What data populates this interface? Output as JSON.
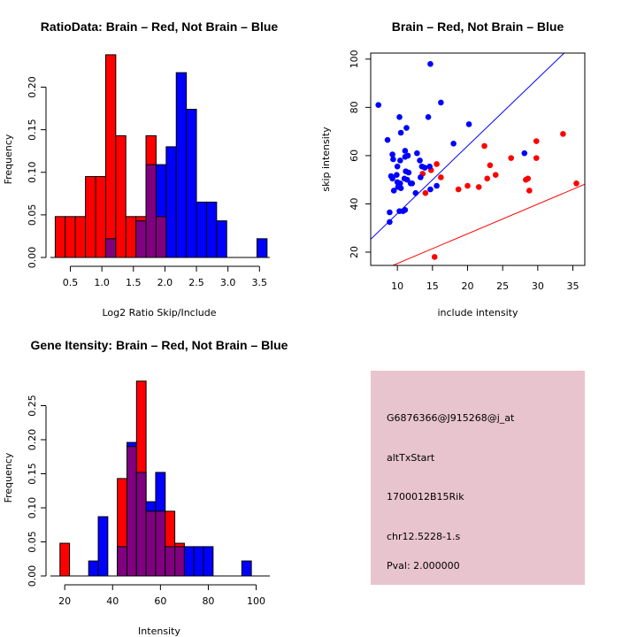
{
  "chart_data": [
    {
      "id": "ratio",
      "type": "bar",
      "subtype": "overlaid-histogram",
      "title": "RatioData: Brain – Red, Not Brain – Blue",
      "xlabel": "Log2 Ratio Skip/Include",
      "ylabel": "Frequency",
      "xlim": [
        0.24,
        3.58
      ],
      "ylim": [
        0,
        0.24
      ],
      "xticks": [
        0.5,
        1.0,
        1.5,
        2.0,
        2.5,
        3.0,
        3.5
      ],
      "xtick_labels": [
        "0.5",
        "1.0",
        "1.5",
        "2.0",
        "2.5",
        "3.0",
        "3.5"
      ],
      "yticks": [
        0.0,
        0.05,
        0.1,
        0.15,
        0.2
      ],
      "ytick_labels": [
        "0.00",
        "0.05",
        "0.10",
        "0.15",
        "0.20"
      ],
      "bin_start": 0.26,
      "bin_width": 0.16,
      "series": [
        {
          "name": "Brain",
          "color": "#ff0000",
          "values": [
            0.048,
            0.048,
            0.048,
            0.095,
            0.095,
            0.238,
            0.143,
            0.048,
            0.048,
            0.143,
            0.048,
            0,
            0,
            0,
            0,
            0,
            0,
            0,
            0,
            0,
            0
          ]
        },
        {
          "name": "Not Brain",
          "color": "#0000ff",
          "values": [
            0,
            0,
            0,
            0,
            0,
            0.022,
            0,
            0,
            0.043,
            0.109,
            0.109,
            0.13,
            0.217,
            0.174,
            0.065,
            0.065,
            0.043,
            0,
            0,
            0,
            0.022
          ]
        }
      ],
      "overlap_color": "#800080"
    },
    {
      "id": "scatter",
      "type": "scatter",
      "title": "Brain – Red, Not Brain – Blue",
      "xlabel": "include intensity",
      "ylabel": "skip intensity",
      "xlim": [
        6.2,
        36.7
      ],
      "ylim": [
        14.5,
        102.5
      ],
      "xticks": [
        10,
        15,
        20,
        25,
        30,
        35
      ],
      "yticks": [
        20,
        40,
        60,
        80,
        100
      ],
      "series": [
        {
          "name": "Brain",
          "color": "#ff0000",
          "points": [
            [
              15.3,
              18.0
            ],
            [
              13.6,
              52.5
            ],
            [
              14.8,
              54.0
            ],
            [
              15.6,
              56.5
            ],
            [
              16.2,
              51.0
            ],
            [
              14.0,
              44.5
            ],
            [
              18.7,
              46.0
            ],
            [
              20.0,
              47.5
            ],
            [
              21.6,
              47.0
            ],
            [
              22.8,
              50.5
            ],
            [
              23.2,
              56.0
            ],
            [
              22.4,
              64.0
            ],
            [
              24.0,
              52.0
            ],
            [
              26.2,
              59.0
            ],
            [
              28.3,
              50.0
            ],
            [
              28.6,
              50.5
            ],
            [
              28.8,
              45.5
            ],
            [
              29.8,
              66.0
            ],
            [
              29.8,
              59.0
            ],
            [
              33.6,
              69.0
            ],
            [
              35.5,
              48.5
            ]
          ],
          "fit_line": {
            "slope": 1.23,
            "intercept": 3.0
          }
        },
        {
          "name": "Not Brain",
          "color": "#0000ff",
          "points": [
            [
              7.3,
              81.0
            ],
            [
              14.7,
              98.0
            ],
            [
              16.2,
              82.0
            ],
            [
              14.4,
              76.0
            ],
            [
              10.3,
              76.0
            ],
            [
              11.3,
              71.5
            ],
            [
              10.5,
              69.5
            ],
            [
              8.6,
              66.5
            ],
            [
              9.3,
              60.5
            ],
            [
              9.4,
              58.5
            ],
            [
              10.4,
              58.0
            ],
            [
              11.1,
              62.0
            ],
            [
              11.1,
              59.5
            ],
            [
              11.5,
              60.0
            ],
            [
              12.8,
              61.0
            ],
            [
              13.2,
              58.0
            ],
            [
              18.0,
              65.0
            ],
            [
              20.2,
              73.0
            ],
            [
              9.1,
              51.5
            ],
            [
              9.3,
              50.5
            ],
            [
              9.5,
              45.5
            ],
            [
              10.0,
              55.5
            ],
            [
              9.9,
              52.0
            ],
            [
              10.0,
              49.0
            ],
            [
              10.4,
              48.5
            ],
            [
              10.1,
              47.0
            ],
            [
              10.5,
              46.5
            ],
            [
              11.0,
              50.5
            ],
            [
              11.2,
              53.5
            ],
            [
              11.6,
              53.0
            ],
            [
              11.4,
              50.0
            ],
            [
              11.9,
              48.5
            ],
            [
              12.1,
              48.5
            ],
            [
              12.6,
              44.5
            ],
            [
              13.3,
              51.0
            ],
            [
              13.5,
              55.5
            ],
            [
              13.9,
              55.0
            ],
            [
              14.6,
              55.5
            ],
            [
              14.7,
              46.0
            ],
            [
              15.6,
              47.5
            ],
            [
              8.9,
              36.5
            ],
            [
              8.9,
              32.5
            ],
            [
              10.3,
              37.0
            ],
            [
              10.8,
              37.0
            ],
            [
              11.1,
              37.5
            ],
            [
              28.1,
              61.0
            ]
          ],
          "fit_line": {
            "slope": 2.8,
            "intercept": 8.0
          }
        }
      ]
    },
    {
      "id": "intensity",
      "type": "bar",
      "subtype": "overlaid-histogram",
      "title": "Gene Itensity: Brain – Red, Not Brain – Blue",
      "xlabel": "Intensity",
      "ylabel": "Frequency",
      "xlim": [
        15.5,
        103.5
      ],
      "ylim": [
        0,
        0.3
      ],
      "xticks": [
        20,
        40,
        60,
        80,
        100
      ],
      "xtick_labels": [
        "20",
        "40",
        "60",
        "80",
        "100"
      ],
      "yticks": [
        0.0,
        0.05,
        0.1,
        0.15,
        0.2,
        0.25
      ],
      "ytick_labels": [
        "0.00",
        "0.05",
        "0.10",
        "0.15",
        "0.20",
        "0.25"
      ],
      "bin_start": 18,
      "bin_width": 4,
      "series": [
        {
          "name": "Brain",
          "color": "#ff0000",
          "values": [
            0.048,
            0,
            0,
            0,
            0,
            0,
            0.143,
            0.19,
            0.286,
            0.095,
            0.095,
            0.095,
            0.048,
            0,
            0,
            0,
            0,
            0,
            0,
            0
          ]
        },
        {
          "name": "Not Brain",
          "color": "#0000ff",
          "values": [
            0,
            0,
            0,
            0.022,
            0.087,
            0,
            0.043,
            0.196,
            0.152,
            0.109,
            0.152,
            0.043,
            0.043,
            0.043,
            0.043,
            0.043,
            0,
            0,
            0,
            0.022
          ]
        }
      ],
      "overlap_color": "#800080"
    }
  ],
  "info_panel": {
    "background": "#e8c4cf",
    "lines": [
      {
        "text": "G6876366@J915268@j_at",
        "color": "#000000"
      },
      {
        "text": "altTxStart",
        "color": "#000000"
      },
      {
        "text": "1700012B15Rik",
        "color": "#000000"
      },
      {
        "text": "chr12.5228-1.s",
        "color": "#000000"
      },
      {
        "text": "Pval: 2.000000",
        "color": "#a00000"
      }
    ]
  }
}
